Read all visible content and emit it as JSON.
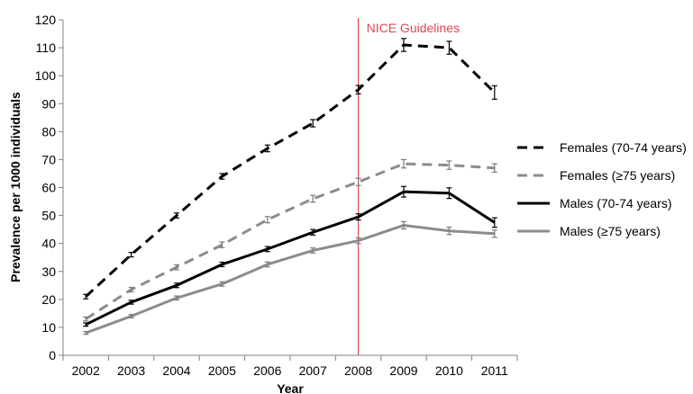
{
  "chart_data": {
    "type": "line",
    "title": "",
    "xlabel": "Year",
    "ylabel": "Prevalence per 1000 individuals",
    "x": [
      "2002",
      "2003",
      "2004",
      "2005",
      "2006",
      "2007",
      "2008",
      "2009",
      "2010",
      "2011"
    ],
    "ylim": [
      0,
      120
    ],
    "yticks": [
      0,
      10,
      20,
      30,
      40,
      50,
      60,
      70,
      80,
      90,
      100,
      110,
      120
    ],
    "grid": false,
    "legend_position": "right",
    "annotation": {
      "x": "2008",
      "label": "NICE Guidelines",
      "color": "#e0454f"
    },
    "series": [
      {
        "name": "Females (70-74 years)",
        "color": "#000000",
        "dash": true,
        "width": 3,
        "values": [
          21,
          36,
          50,
          64,
          74,
          83,
          95,
          111,
          110,
          94
        ],
        "err": [
          0.8,
          0.8,
          0.9,
          1.0,
          1.2,
          1.3,
          1.5,
          2.3,
          2.3,
          2.4
        ]
      },
      {
        "name": "Females (≥75 years)",
        "color": "#8c8c8c",
        "dash": true,
        "width": 3,
        "values": [
          13,
          23.5,
          31.5,
          39.5,
          48.5,
          56,
          62,
          68.5,
          68,
          67
        ],
        "err": [
          0.7,
          0.8,
          0.9,
          1.0,
          1.1,
          1.2,
          1.3,
          1.5,
          1.5,
          1.5
        ]
      },
      {
        "name": "Males (70-74 years)",
        "color": "#000000",
        "dash": false,
        "width": 3,
        "values": [
          11,
          19,
          25,
          32.5,
          38,
          44,
          49.5,
          58.5,
          58,
          47.5
        ],
        "err": [
          0.6,
          0.7,
          0.8,
          0.8,
          0.9,
          1.0,
          1.1,
          1.9,
          1.9,
          1.7
        ]
      },
      {
        "name": "Males (≥75 years)",
        "color": "#8c8c8c",
        "dash": false,
        "width": 3,
        "values": [
          8,
          14,
          20.5,
          25.5,
          32.5,
          37.5,
          41,
          46.5,
          44.5,
          43.5
        ],
        "err": [
          0.5,
          0.6,
          0.7,
          0.8,
          0.9,
          0.9,
          1.0,
          1.3,
          1.3,
          1.3
        ]
      }
    ]
  }
}
